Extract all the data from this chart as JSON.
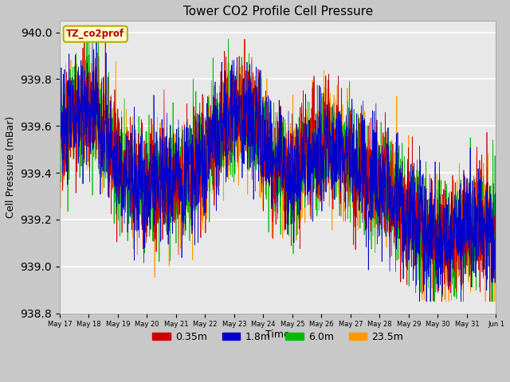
{
  "title": "Tower CO2 Profile Cell Pressure",
  "ylabel": "Cell Pressure (mBar)",
  "xlabel": "Time",
  "annotation": "TZ_co2prof",
  "ylim": [
    938.8,
    940.05
  ],
  "yticks": [
    938.8,
    939.0,
    939.2,
    939.4,
    939.6,
    939.8,
    940.0
  ],
  "series": [
    "0.35m",
    "1.8m",
    "6.0m",
    "23.5m"
  ],
  "colors": [
    "#cc0000",
    "#0000cc",
    "#00bb00",
    "#ff9900"
  ],
  "fig_bg_color": "#c8c8c8",
  "plot_bg_color": "#e8e8e8",
  "seed": 42,
  "n_points": 2000,
  "tick_labels": [
    "May 17",
    "May 18",
    "May 19",
    "May 20",
    "May 21",
    "May 22",
    "May 23",
    "May 24",
    "May 25",
    "May 26",
    "May 27",
    "May 28",
    "May 29",
    "May 30",
    "May 31",
    "Jun 1"
  ],
  "base_pressure": 939.48,
  "lw": 0.5
}
